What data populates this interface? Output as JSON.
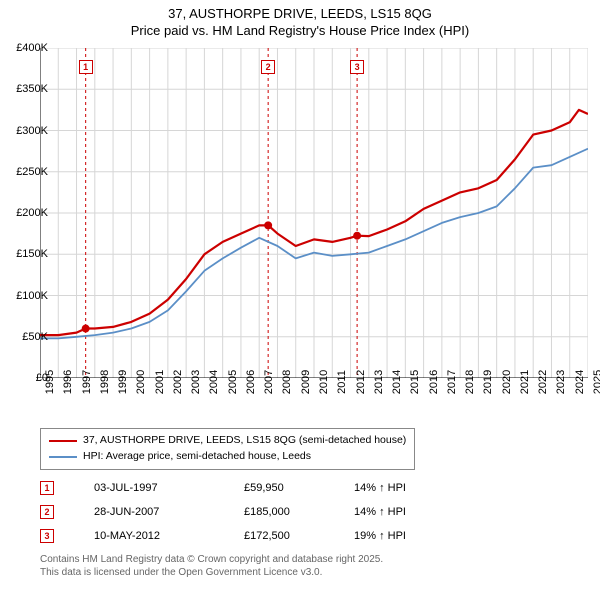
{
  "title_line1": "37, AUSTHORPE DRIVE, LEEDS, LS15 8QG",
  "title_line2": "Price paid vs. HM Land Registry's House Price Index (HPI)",
  "chart": {
    "type": "line",
    "background_color": "#ffffff",
    "grid_color": "#d6d6d6",
    "axis_color": "#000000",
    "x_years": [
      1995,
      1996,
      1997,
      1998,
      1999,
      2000,
      2001,
      2002,
      2003,
      2004,
      2005,
      2006,
      2007,
      2008,
      2009,
      2010,
      2011,
      2012,
      2013,
      2014,
      2015,
      2016,
      2017,
      2018,
      2019,
      2020,
      2021,
      2022,
      2023,
      2024,
      2025
    ],
    "y_min": 0,
    "y_max": 400000,
    "y_tick_step": 50000,
    "y_tick_labels": [
      "£0",
      "£50K",
      "£100K",
      "£150K",
      "£200K",
      "£250K",
      "£300K",
      "£350K",
      "£400K"
    ],
    "series": [
      {
        "name": "37, AUSTHORPE DRIVE, LEEDS, LS15 8QG (semi-detached house)",
        "color": "#cc0000",
        "line_width": 2.2,
        "data": [
          [
            1995,
            52000
          ],
          [
            1996,
            52000
          ],
          [
            1997,
            55000
          ],
          [
            1997.5,
            59950
          ],
          [
            1998,
            60000
          ],
          [
            1999,
            62000
          ],
          [
            2000,
            68000
          ],
          [
            2001,
            78000
          ],
          [
            2002,
            95000
          ],
          [
            2003,
            120000
          ],
          [
            2004,
            150000
          ],
          [
            2005,
            165000
          ],
          [
            2006,
            175000
          ],
          [
            2007,
            185000
          ],
          [
            2007.5,
            185000
          ],
          [
            2008,
            175000
          ],
          [
            2009,
            160000
          ],
          [
            2010,
            168000
          ],
          [
            2011,
            165000
          ],
          [
            2012,
            170000
          ],
          [
            2012.36,
            172500
          ],
          [
            2013,
            172000
          ],
          [
            2014,
            180000
          ],
          [
            2015,
            190000
          ],
          [
            2016,
            205000
          ],
          [
            2017,
            215000
          ],
          [
            2018,
            225000
          ],
          [
            2019,
            230000
          ],
          [
            2020,
            240000
          ],
          [
            2021,
            265000
          ],
          [
            2022,
            295000
          ],
          [
            2023,
            300000
          ],
          [
            2024,
            310000
          ],
          [
            2024.5,
            325000
          ],
          [
            2025,
            320000
          ]
        ]
      },
      {
        "name": "HPI: Average price, semi-detached house, Leeds",
        "color": "#5b8fc7",
        "line_width": 1.8,
        "data": [
          [
            1995,
            48000
          ],
          [
            1996,
            48000
          ],
          [
            1997,
            50000
          ],
          [
            1998,
            52000
          ],
          [
            1999,
            55000
          ],
          [
            2000,
            60000
          ],
          [
            2001,
            68000
          ],
          [
            2002,
            82000
          ],
          [
            2003,
            105000
          ],
          [
            2004,
            130000
          ],
          [
            2005,
            145000
          ],
          [
            2006,
            158000
          ],
          [
            2007,
            170000
          ],
          [
            2008,
            160000
          ],
          [
            2009,
            145000
          ],
          [
            2010,
            152000
          ],
          [
            2011,
            148000
          ],
          [
            2012,
            150000
          ],
          [
            2013,
            152000
          ],
          [
            2014,
            160000
          ],
          [
            2015,
            168000
          ],
          [
            2016,
            178000
          ],
          [
            2017,
            188000
          ],
          [
            2018,
            195000
          ],
          [
            2019,
            200000
          ],
          [
            2020,
            208000
          ],
          [
            2021,
            230000
          ],
          [
            2022,
            255000
          ],
          [
            2023,
            258000
          ],
          [
            2024,
            268000
          ],
          [
            2025,
            278000
          ]
        ]
      }
    ],
    "sale_markers": [
      {
        "n": 1,
        "x": 1997.5,
        "y": 59950
      },
      {
        "n": 2,
        "x": 2007.49,
        "y": 185000
      },
      {
        "n": 3,
        "x": 2012.36,
        "y": 172500
      }
    ],
    "vline_color": "#cc0000",
    "vline_dash": "3,3"
  },
  "legend": {
    "items": [
      {
        "color": "#cc0000",
        "label": "37, AUSTHORPE DRIVE, LEEDS, LS15 8QG (semi-detached house)"
      },
      {
        "color": "#5b8fc7",
        "label": "HPI: Average price, semi-detached house, Leeds"
      }
    ]
  },
  "sales": [
    {
      "n": "1",
      "date": "03-JUL-1997",
      "price": "£59,950",
      "delta": "14% ↑ HPI"
    },
    {
      "n": "2",
      "date": "28-JUN-2007",
      "price": "£185,000",
      "delta": "14% ↑ HPI"
    },
    {
      "n": "3",
      "date": "10-MAY-2012",
      "price": "£172,500",
      "delta": "19% ↑ HPI"
    }
  ],
  "footer_line1": "Contains HM Land Registry data © Crown copyright and database right 2025.",
  "footer_line2": "This data is licensed under the Open Government Licence v3.0."
}
